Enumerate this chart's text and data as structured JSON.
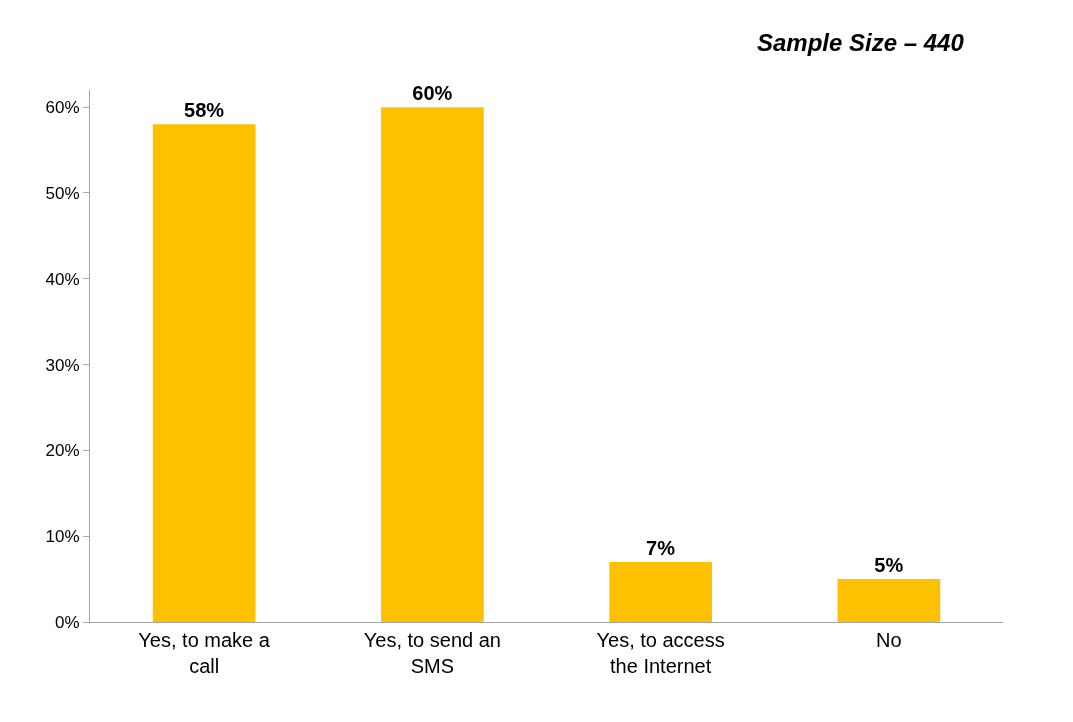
{
  "chart_data": {
    "type": "bar",
    "categories": [
      "Yes, to make a call",
      "Yes, to send an SMS",
      "Yes, to access the Internet",
      "No"
    ],
    "values": [
      58,
      60,
      7,
      5
    ],
    "color": "#ffc000",
    "value_labels": [
      "58%",
      "60%",
      "7%",
      "5%"
    ],
    "ylim": [
      0,
      62
    ],
    "yticks": [
      {
        "value": 0,
        "label": "0%"
      },
      {
        "value": 10,
        "label": "10%"
      },
      {
        "value": 20,
        "label": "20%"
      },
      {
        "value": 30,
        "label": "30%"
      },
      {
        "value": 40,
        "label": "40%"
      },
      {
        "value": 50,
        "label": "50%"
      },
      {
        "value": 60,
        "label": "60%"
      }
    ],
    "grid": false,
    "annotations": [
      "Sample Size – 440"
    ]
  }
}
